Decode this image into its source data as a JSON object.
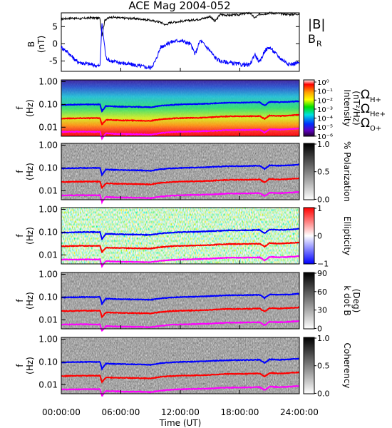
{
  "title": "ACE Mag 2004-052",
  "colors": {
    "bmag": "#000000",
    "br": "#0000ff",
    "h": "#0000ff",
    "he": "#ff0000",
    "o": "#ff00ff"
  },
  "xaxis": {
    "label": "Time (UT)",
    "ticks": [
      {
        "h": 0,
        "label": "00:00:00"
      },
      {
        "h": 6,
        "label": "06:00:00"
      },
      {
        "h": 12,
        "label": "12:00:00"
      },
      {
        "h": 18,
        "label": "18:00:00"
      },
      {
        "h": 24,
        "label": "24:00:00"
      }
    ]
  },
  "freq_ticks": [
    "1.00",
    "0.10",
    "0.01"
  ],
  "freq_label_f": "f",
  "freq_label_unit": "(Hz)",
  "legend": {
    "bmag": "|B|",
    "br": "B",
    "br_sub": "R",
    "h": "Ω",
    "h_sub": "H+",
    "he": "Ω",
    "he_sub": "He+",
    "o": "Ω",
    "o_sub": "O+"
  },
  "panels": [
    {
      "id": "intensity",
      "colorbar_label": "Intensity",
      "colorbar_label2": "(nT²/Hz)",
      "colorbar_ticks": [
        "10⁰",
        "10⁻¹",
        "10⁻²",
        "10⁻³",
        "10⁻⁴",
        "10⁻⁵",
        "10⁻⁶"
      ]
    },
    {
      "id": "polarization",
      "colorbar_label": "% Polarization",
      "colorbar_ticks": [
        "1.0",
        "0.5",
        "0.0"
      ]
    },
    {
      "id": "ellipticity",
      "colorbar_label": "Ellipticity",
      "colorbar_ticks": [
        "1",
        "0",
        "−1"
      ]
    },
    {
      "id": "kdotb",
      "colorbar_label": "k dot B",
      "colorbar_label2": "(Deg)",
      "colorbar_ticks": [
        "90",
        "60",
        "30",
        "0"
      ]
    },
    {
      "id": "coherency",
      "colorbar_label": "Coherency",
      "colorbar_ticks": [
        "1.0",
        "0.5",
        "0.0"
      ]
    }
  ],
  "chart_data": {
    "type": "line",
    "title": "ACE Mag 2004-052",
    "xlabel": "Time (UT)",
    "xlim": [
      0,
      24
    ],
    "b_panel": {
      "ylabel": "B",
      "yunit": "(nT)",
      "ylim": [
        -8,
        9
      ],
      "yticks": [
        5,
        0,
        -5
      ],
      "series": [
        {
          "name": "|B|",
          "color": "#000000",
          "x": [
            0,
            1,
            2,
            3,
            3.9,
            4.1,
            4.4,
            5,
            6,
            7,
            8,
            9,
            10,
            10.5,
            11,
            12,
            13,
            14,
            14.5,
            15,
            15.5,
            16,
            17,
            18,
            19,
            19.5,
            20,
            20.5,
            21,
            22,
            23,
            24
          ],
          "y": [
            7.2,
            7.5,
            7.3,
            7.6,
            7.4,
            2.5,
            7,
            7.8,
            7.5,
            7.4,
            7.2,
            6.8,
            6.3,
            5.5,
            6.2,
            6.5,
            6.8,
            7.2,
            7.5,
            8,
            6.5,
            8.5,
            8.3,
            8.5,
            9,
            7.5,
            8.6,
            8.7,
            9,
            8.8,
            8.5,
            8.7
          ]
        },
        {
          "name": "B",
          "color": "#0000ff",
          "x": [
            0,
            0.5,
            1,
            1.5,
            2,
            3,
            3.9,
            4.1,
            4.5,
            5,
            6,
            7,
            8,
            9,
            9.5,
            10,
            11,
            12,
            13,
            13.5,
            14,
            15,
            15.5,
            16,
            17,
            18,
            19,
            19.5,
            20,
            20.5,
            21,
            22,
            23,
            24
          ],
          "y": [
            -1,
            -2,
            -3.5,
            -5,
            -5.5,
            -6,
            -6.5,
            6,
            -4,
            -5,
            -5.5,
            -6,
            -6.5,
            -7,
            -5,
            -1,
            0.5,
            1,
            0,
            -3,
            1,
            -2,
            -4,
            -5,
            -5.5,
            -6,
            -6.2,
            -3,
            -5.5,
            -2,
            -1,
            -4,
            -6,
            -5.5
          ]
        }
      ]
    },
    "spectrogram_panels": {
      "ylabel": "f (Hz)",
      "yscale": "log",
      "ylim": [
        0.004,
        1.2
      ],
      "series": [
        {
          "name": "ΩH+",
          "color": "#0000ff",
          "x": [
            0,
            2,
            3.9,
            4.1,
            4.5,
            6,
            8,
            9,
            10,
            11,
            12,
            14,
            15,
            16,
            17,
            18,
            20,
            20.5,
            21,
            22,
            23,
            24
          ],
          "y": [
            0.095,
            0.1,
            0.1,
            0.05,
            0.085,
            0.08,
            0.078,
            0.075,
            0.088,
            0.095,
            0.1,
            0.105,
            0.11,
            0.115,
            0.12,
            0.12,
            0.125,
            0.09,
            0.13,
            0.125,
            0.13,
            0.14
          ]
        },
        {
          "name": "ΩHe+",
          "color": "#ff0000",
          "x": [
            0,
            2,
            3.9,
            4.1,
            4.5,
            6,
            8,
            9,
            10,
            11,
            12,
            14,
            15,
            16,
            17,
            18,
            20,
            20.5,
            21,
            22,
            23,
            24
          ],
          "y": [
            0.024,
            0.025,
            0.025,
            0.013,
            0.021,
            0.02,
            0.0195,
            0.019,
            0.022,
            0.024,
            0.025,
            0.026,
            0.027,
            0.029,
            0.03,
            0.03,
            0.031,
            0.023,
            0.033,
            0.031,
            0.033,
            0.035
          ]
        },
        {
          "name": "ΩO+",
          "color": "#ff00ff",
          "x": [
            0,
            2,
            3.9,
            4.1,
            4.5,
            6,
            8,
            9,
            10,
            11,
            12,
            14,
            15,
            16,
            17,
            18,
            20,
            20.5,
            21,
            22,
            23,
            24
          ],
          "y": [
            0.0062,
            0.0063,
            0.0063,
            0.0032,
            0.0053,
            0.005,
            0.0049,
            0.0047,
            0.0055,
            0.006,
            0.0063,
            0.0066,
            0.0068,
            0.0072,
            0.0075,
            0.0075,
            0.0078,
            0.0058,
            0.0082,
            0.0078,
            0.0082,
            0.0088
          ]
        }
      ]
    }
  }
}
